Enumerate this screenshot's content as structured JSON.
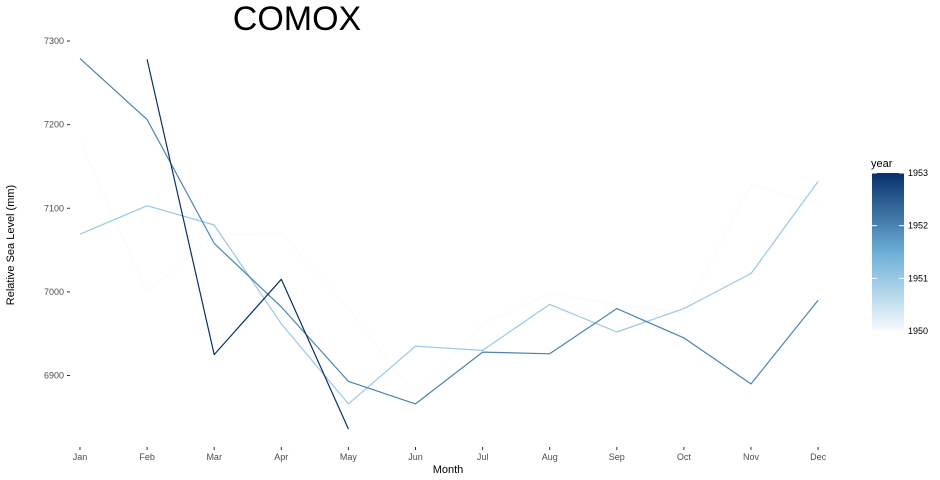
{
  "chart_data": {
    "type": "line",
    "title": "COMOX",
    "xlabel": "Month",
    "ylabel": "Relative Sea Level (mm)",
    "categories": [
      "Jan",
      "Feb",
      "Mar",
      "Apr",
      "May",
      "Jun",
      "Jul",
      "Aug",
      "Sep",
      "Oct",
      "Nov",
      "Dec"
    ],
    "yticks": [
      6900,
      7000,
      7100,
      7200,
      7300
    ],
    "ylim": [
      6830,
      7310
    ],
    "grid": false,
    "legend": {
      "title": "year",
      "placement": "right",
      "ticks": [
        1950,
        1951,
        1952,
        1953
      ],
      "tick_labels": [
        "1950",
        "1951",
        "1952",
        "1953"
      ],
      "range": [
        1950,
        1953
      ],
      "color_low": "#f7fbff",
      "color_high": "#08306b"
    },
    "series": [
      {
        "year": 1950,
        "values": [
          7180,
          7000,
          7068,
          7070,
          6980,
          6875,
          6962,
          6998,
          6985,
          6975,
          7128,
          7105
        ]
      },
      {
        "year": 1951,
        "values": [
          7069,
          7103,
          7080,
          6962,
          6866,
          6935,
          6930,
          6985,
          6952,
          6980,
          7022,
          7132
        ]
      },
      {
        "year": 1952,
        "values": [
          7279,
          7206,
          7058,
          6982,
          6893,
          6866,
          6928,
          6926,
          6980,
          6945,
          6890,
          6990
        ]
      },
      {
        "year": 1953,
        "values": [
          null,
          7278,
          6925,
          7015,
          6836,
          null,
          null,
          null,
          null,
          null,
          null,
          null
        ]
      }
    ]
  }
}
